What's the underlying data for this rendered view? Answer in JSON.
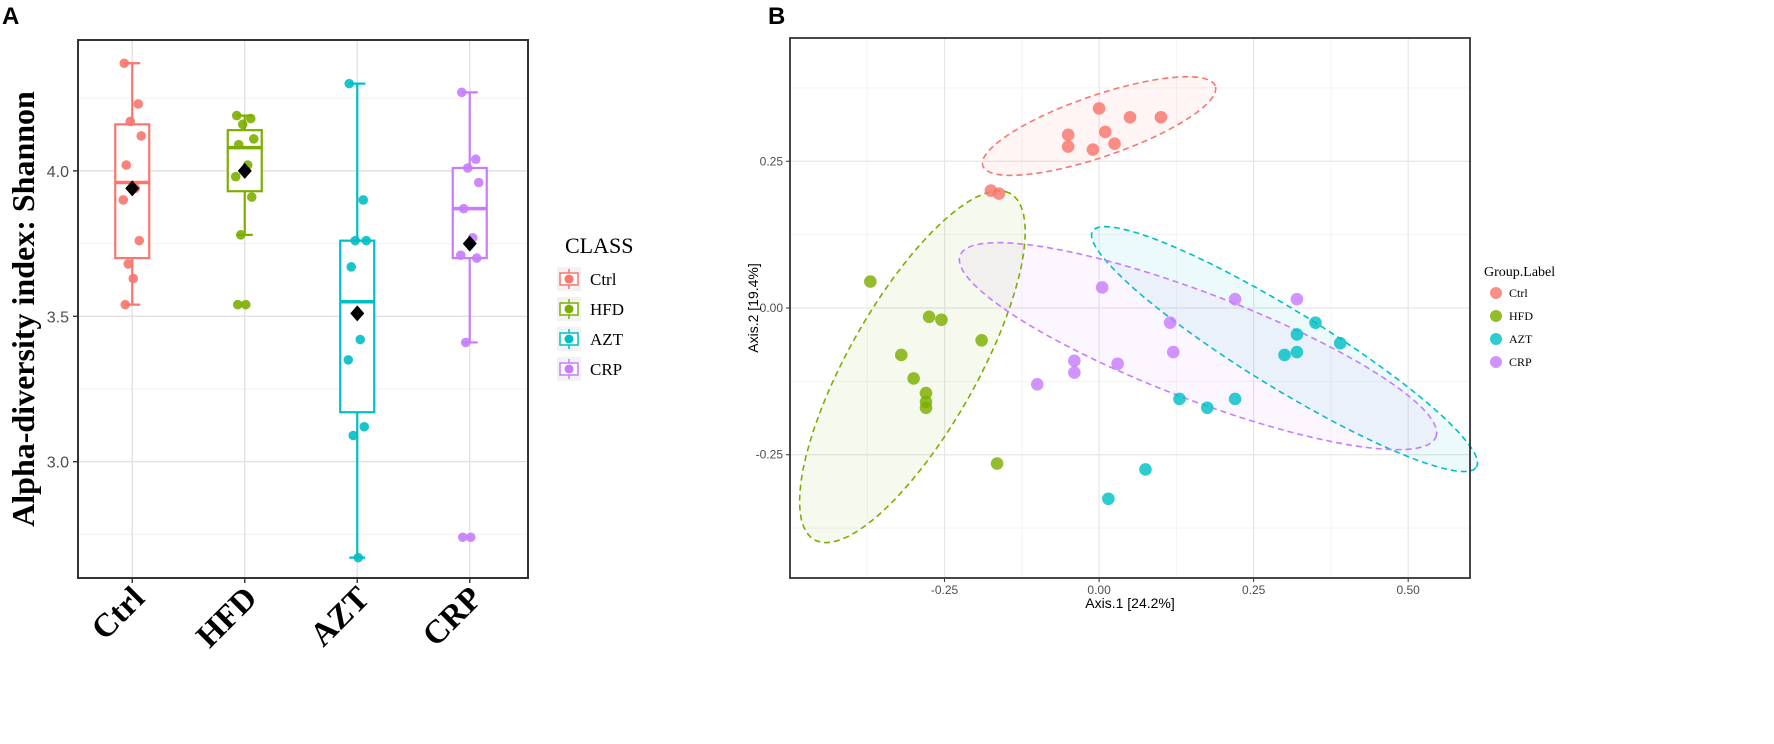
{
  "panelA_letter": "A",
  "panelB_letter": "B",
  "chart_data": [
    {
      "type": "boxplot",
      "panel": "A",
      "ylabel": "Alpha-diversity index: Shannon",
      "xlabel": "",
      "ylim": [
        2.6,
        4.45
      ],
      "yticks": [
        3.0,
        3.5,
        4.0
      ],
      "ytick_labels": [
        "3.0",
        "3.5",
        "4.0"
      ],
      "legend_title": "CLASS",
      "categories": [
        "Ctrl",
        "HFD",
        "AZT",
        "CRP"
      ],
      "colors": [
        "#F8766D",
        "#7CAE00",
        "#00BFC4",
        "#C77CFF"
      ],
      "boxes": [
        {
          "name": "Ctrl",
          "min": 3.54,
          "q1": 3.7,
          "median": 3.96,
          "q3": 4.16,
          "max": 4.37,
          "mean": 3.94,
          "points": [
            4.37,
            4.23,
            4.17,
            4.12,
            4.02,
            3.94,
            3.9,
            3.76,
            3.68,
            3.63,
            3.54
          ]
        },
        {
          "name": "HFD",
          "min": 3.78,
          "q1": 3.93,
          "median": 4.08,
          "q3": 4.14,
          "max": 4.19,
          "mean": 4.0,
          "points": [
            4.19,
            4.18,
            4.16,
            4.11,
            4.09,
            4.02,
            3.98,
            3.91,
            3.78,
            3.54,
            3.54
          ]
        },
        {
          "name": "AZT",
          "min": 2.67,
          "q1": 3.17,
          "median": 3.55,
          "q3": 3.76,
          "max": 4.3,
          "mean": 3.51,
          "points": [
            4.3,
            3.9,
            3.76,
            3.76,
            3.67,
            3.42,
            3.35,
            3.12,
            3.09,
            2.67
          ]
        },
        {
          "name": "CRP",
          "min": 3.41,
          "q1": 3.7,
          "median": 3.87,
          "q3": 4.01,
          "max": 4.27,
          "mean": 3.75,
          "points": [
            4.27,
            4.04,
            4.01,
            3.96,
            3.87,
            3.77,
            3.71,
            3.7,
            3.41,
            2.74,
            2.74
          ]
        }
      ]
    },
    {
      "type": "scatter",
      "panel": "B",
      "xlabel": "Axis.1   [24.2%]",
      "ylabel": "Axis.2   [19.4%]",
      "xlim": [
        -0.5,
        0.6
      ],
      "ylim": [
        -0.46,
        0.46
      ],
      "xticks": [
        -0.25,
        0,
        0.25,
        0.5
      ],
      "xtick_labels": [
        "-0.25",
        "0.00",
        "0.25",
        "0.50"
      ],
      "yticks": [
        -0.25,
        0,
        0.25
      ],
      "ytick_labels": [
        "-0.25",
        "0.00",
        "0.25"
      ],
      "legend_title": "Group.Label",
      "series": [
        {
          "name": "Ctrl",
          "color": "#F8766D",
          "ellipse": {
            "cx": 0.0,
            "cy": 0.31,
            "rx": 0.2,
            "ry": 0.052,
            "angle": 20
          },
          "points": [
            [
              0.0,
              0.34
            ],
            [
              0.05,
              0.325
            ],
            [
              0.1,
              0.325
            ],
            [
              -0.05,
              0.295
            ],
            [
              0.01,
              0.3
            ],
            [
              -0.05,
              0.275
            ],
            [
              -0.01,
              0.27
            ],
            [
              0.025,
              0.28
            ],
            [
              -0.175,
              0.2
            ],
            [
              -0.162,
              0.195
            ]
          ]
        },
        {
          "name": "HFD",
          "color": "#7CAE00",
          "ellipse": {
            "cx": -0.302,
            "cy": -0.1,
            "rx": 0.335,
            "ry": 0.105,
            "angle": 62
          },
          "points": [
            [
              -0.37,
              0.045
            ],
            [
              -0.275,
              -0.015
            ],
            [
              -0.255,
              -0.02
            ],
            [
              -0.32,
              -0.08
            ],
            [
              -0.19,
              -0.055
            ],
            [
              -0.3,
              -0.12
            ],
            [
              -0.28,
              -0.145
            ],
            [
              -0.28,
              -0.16
            ],
            [
              -0.28,
              -0.17
            ],
            [
              -0.165,
              -0.265
            ]
          ]
        },
        {
          "name": "AZT",
          "color": "#00BFC4",
          "ellipse": {
            "cx": 0.3,
            "cy": -0.07,
            "rx": 0.37,
            "ry": 0.065,
            "angle": -33
          },
          "points": [
            [
              0.35,
              -0.025
            ],
            [
              0.32,
              -0.045
            ],
            [
              0.39,
              -0.06
            ],
            [
              0.3,
              -0.08
            ],
            [
              0.32,
              -0.075
            ],
            [
              0.13,
              -0.155
            ],
            [
              0.175,
              -0.17
            ],
            [
              0.22,
              -0.155
            ],
            [
              0.075,
              -0.275
            ],
            [
              0.015,
              -0.325
            ]
          ]
        },
        {
          "name": "CRP",
          "color": "#C77CFF",
          "ellipse": {
            "cx": 0.16,
            "cy": -0.065,
            "rx": 0.415,
            "ry": 0.09,
            "angle": -22
          },
          "points": [
            [
              0.005,
              0.035
            ],
            [
              0.22,
              0.015
            ],
            [
              0.32,
              0.015
            ],
            [
              0.115,
              -0.025
            ],
            [
              -0.04,
              -0.09
            ],
            [
              0.03,
              -0.095
            ],
            [
              0.12,
              -0.075
            ],
            [
              -0.04,
              -0.11
            ],
            [
              -0.1,
              -0.13
            ]
          ]
        }
      ]
    }
  ]
}
